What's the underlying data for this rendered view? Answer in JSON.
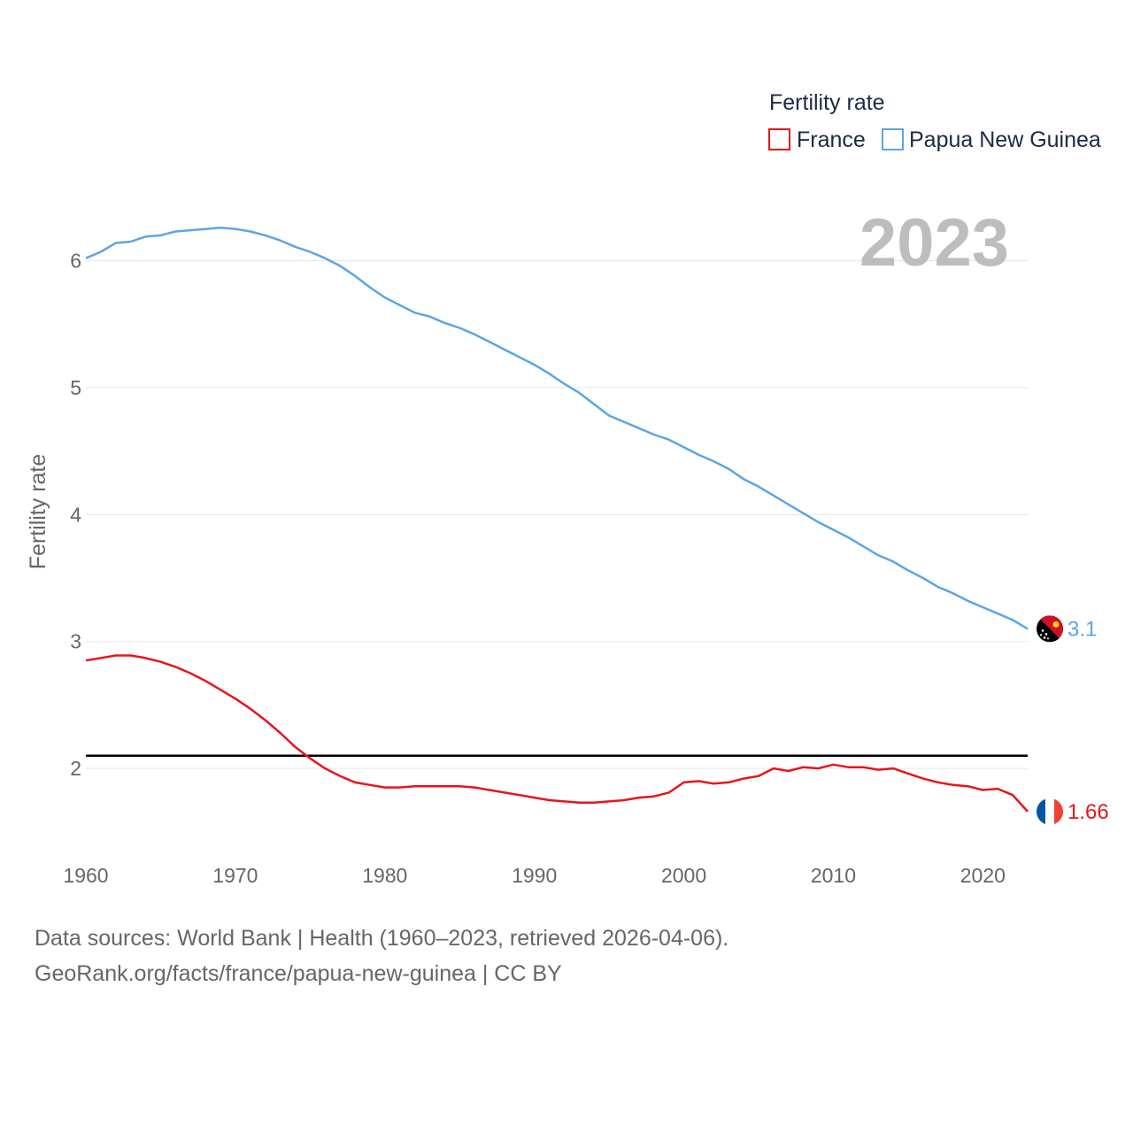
{
  "chart_data": {
    "type": "line",
    "title": "Fertility rate",
    "ylabel": "Fertility rate",
    "xlabel": "",
    "xlim": [
      1960,
      2023
    ],
    "ylim": [
      1.45,
      6.45
    ],
    "y_ticks": [
      2,
      3,
      4,
      5,
      6
    ],
    "y_tick_labels": [
      "2",
      "3",
      "4",
      "5",
      "6"
    ],
    "x_ticks": [
      1960,
      1970,
      1980,
      1990,
      2000,
      2010,
      2020
    ],
    "x_tick_labels": [
      "1960",
      "1970",
      "1980",
      "1990",
      "2000",
      "2010",
      "2020"
    ],
    "grid": true,
    "legend_position": "top-right",
    "year_label": "2023",
    "reference_line": {
      "value": 2.1,
      "color": "#000000"
    },
    "x": [
      1960,
      1961,
      1962,
      1963,
      1964,
      1965,
      1966,
      1967,
      1968,
      1969,
      1970,
      1971,
      1972,
      1973,
      1974,
      1975,
      1976,
      1977,
      1978,
      1979,
      1980,
      1981,
      1982,
      1983,
      1984,
      1985,
      1986,
      1987,
      1988,
      1989,
      1990,
      1991,
      1992,
      1993,
      1994,
      1995,
      1996,
      1997,
      1998,
      1999,
      2000,
      2001,
      2002,
      2003,
      2004,
      2005,
      2006,
      2007,
      2008,
      2009,
      2010,
      2011,
      2012,
      2013,
      2014,
      2015,
      2016,
      2017,
      2018,
      2019,
      2020,
      2021,
      2022,
      2023
    ],
    "series": [
      {
        "name": "France",
        "color": "#e8141c",
        "end_label": "1.66",
        "flag": "france-flag-icon",
        "values": [
          2.85,
          2.87,
          2.89,
          2.89,
          2.87,
          2.84,
          2.8,
          2.75,
          2.69,
          2.62,
          2.55,
          2.47,
          2.38,
          2.28,
          2.17,
          2.08,
          2.0,
          1.94,
          1.89,
          1.87,
          1.85,
          1.85,
          1.86,
          1.86,
          1.86,
          1.86,
          1.85,
          1.83,
          1.81,
          1.79,
          1.77,
          1.75,
          1.74,
          1.73,
          1.73,
          1.74,
          1.75,
          1.77,
          1.78,
          1.81,
          1.89,
          1.9,
          1.88,
          1.89,
          1.92,
          1.94,
          2.0,
          1.98,
          2.01,
          2.0,
          2.03,
          2.01,
          2.01,
          1.99,
          2.0,
          1.96,
          1.92,
          1.89,
          1.87,
          1.86,
          1.83,
          1.84,
          1.79,
          1.66
        ]
      },
      {
        "name": "Papua New Guinea",
        "color": "#5ba5e6",
        "end_label": "3.1",
        "flag": "papua-new-guinea-flag-icon",
        "values": [
          6.02,
          6.07,
          6.14,
          6.15,
          6.19,
          6.2,
          6.23,
          6.24,
          6.25,
          6.26,
          6.25,
          6.23,
          6.2,
          6.16,
          6.11,
          6.07,
          6.02,
          5.96,
          5.88,
          5.79,
          5.71,
          5.65,
          5.59,
          5.56,
          5.51,
          5.47,
          5.42,
          5.36,
          5.3,
          5.24,
          5.18,
          5.11,
          5.03,
          4.96,
          4.87,
          4.78,
          4.73,
          4.68,
          4.63,
          4.59,
          4.53,
          4.47,
          4.42,
          4.36,
          4.28,
          4.22,
          4.15,
          4.08,
          4.01,
          3.94,
          3.88,
          3.82,
          3.75,
          3.68,
          3.63,
          3.56,
          3.5,
          3.43,
          3.38,
          3.32,
          3.27,
          3.22,
          3.17,
          3.1
        ]
      }
    ]
  },
  "footer": {
    "line1": "Data sources: World Bank | Health (1960–2023, retrieved 2026-04-06).",
    "line2": "GeoRank.org/facts/france/papua-new-guinea | CC BY"
  }
}
